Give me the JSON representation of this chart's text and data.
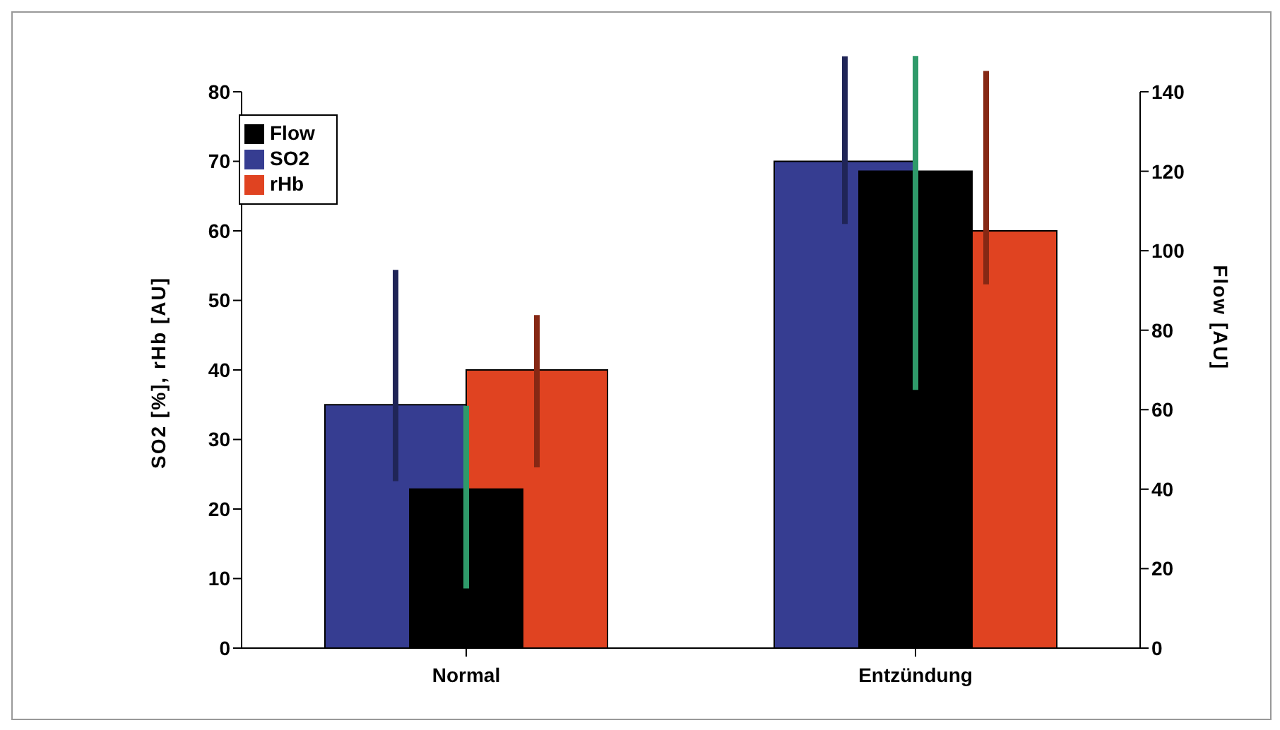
{
  "chart_data": {
    "type": "bar",
    "categories": [
      "Normal",
      "Entzündung"
    ],
    "ylabel": "SO2 [%], rHb [AU]",
    "y2label": "Flow [AU]",
    "series": [
      {
        "name": "SO2",
        "color": "#363d91",
        "values": [
          35,
          70
        ],
        "errors": [
          [
            24,
            54.4
          ],
          [
            61,
            85.1
          ]
        ]
      },
      {
        "name": "rHb",
        "color": "#e04321",
        "values": [
          40,
          60
        ],
        "errors": [
          [
            26,
            47.9
          ],
          [
            52.3,
            83
          ]
        ]
      },
      {
        "name": "Flow",
        "color": "#000000",
        "values": [
          40,
          120
        ],
        "errors": [
          [
            15,
            61
          ],
          [
            65,
            149
          ]
        ],
        "axis": "y2"
      }
    ],
    "ylim": [
      0,
      80
    ],
    "yticks": [
      0,
      10,
      20,
      30,
      40,
      50,
      60,
      70,
      80
    ],
    "y2lim": [
      0,
      140
    ],
    "y2ticks": [
      0,
      20,
      40,
      60,
      80,
      100,
      120,
      140
    ],
    "legend": "top left",
    "grid": false
  }
}
